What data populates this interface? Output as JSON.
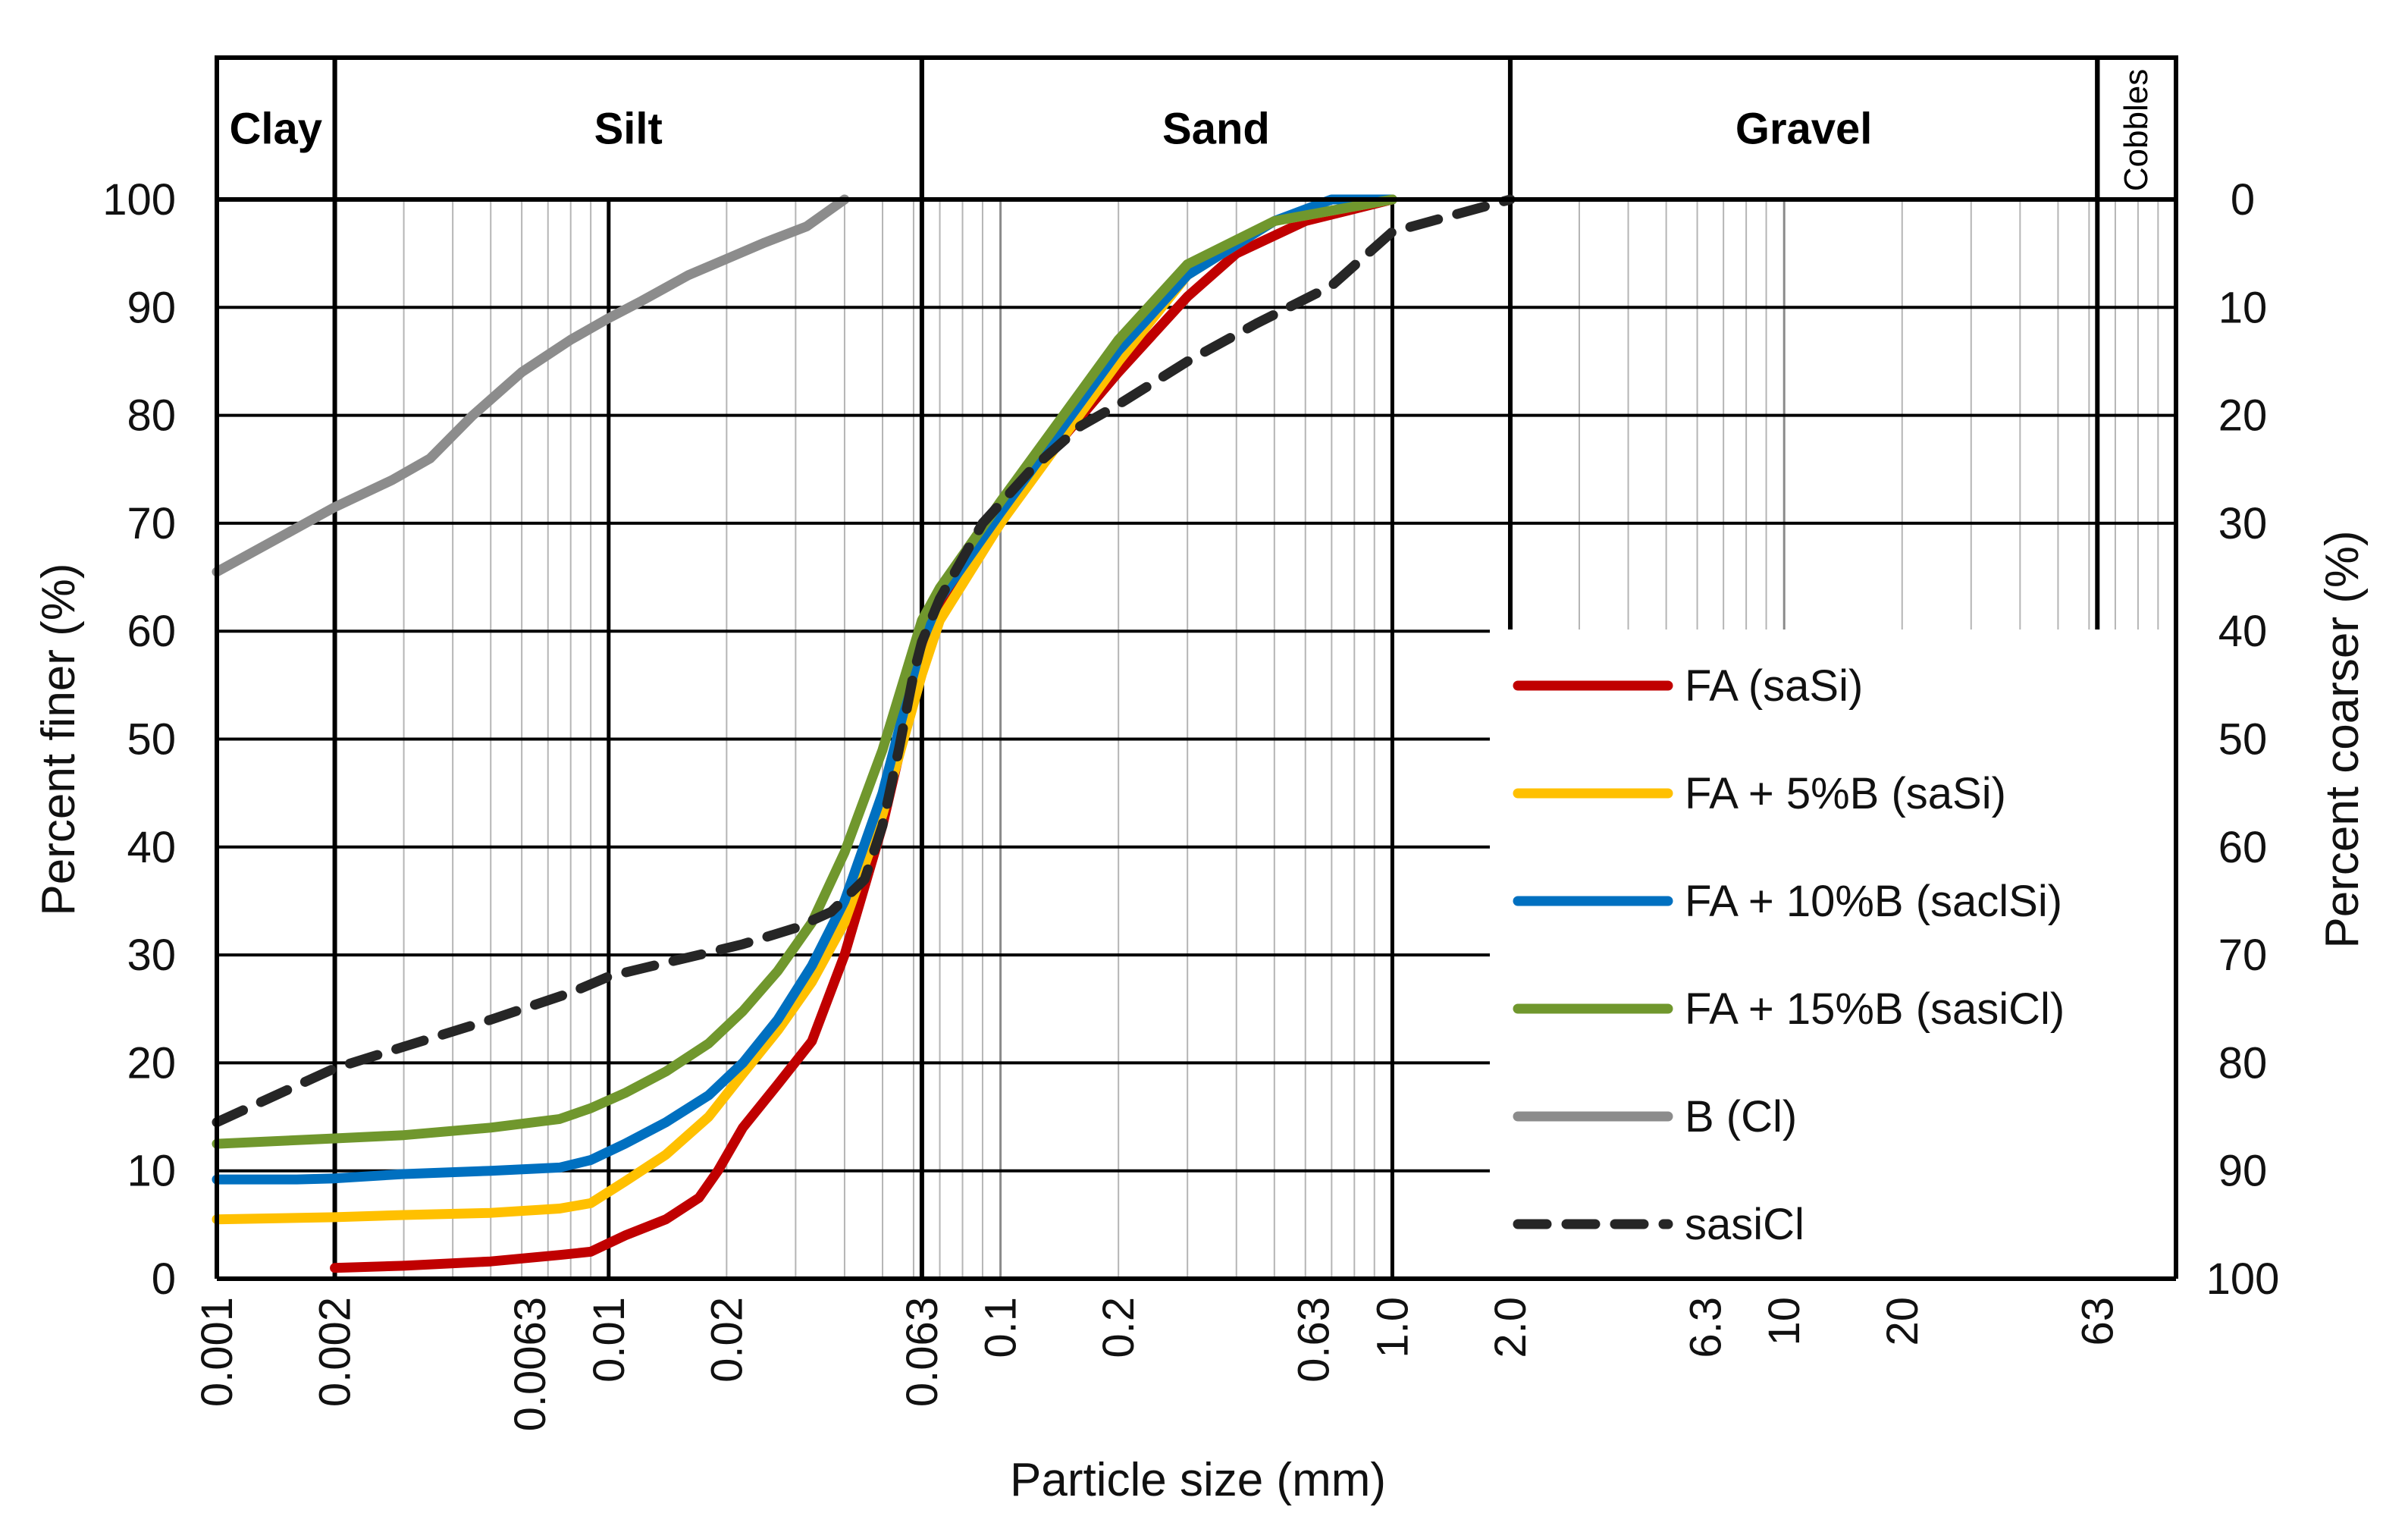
{
  "chart_data": {
    "type": "line",
    "x_scale": "log",
    "xlabel": "Particle size (mm)",
    "ylabel_left": "Percent finer (%)",
    "ylabel_right": "Percent coarser (%)",
    "xlim": [
      0.001,
      100
    ],
    "ylim": [
      0,
      100
    ],
    "x_ticks": [
      {
        "value": 0.001,
        "label": "0.001"
      },
      {
        "value": 0.002,
        "label": "0.002"
      },
      {
        "value": 0.0063,
        "label": "0.0063"
      },
      {
        "value": 0.01,
        "label": "0.01"
      },
      {
        "value": 0.02,
        "label": "0.02"
      },
      {
        "value": 0.063,
        "label": "0.063"
      },
      {
        "value": 0.1,
        "label": "0.1"
      },
      {
        "value": 0.2,
        "label": "0.2"
      },
      {
        "value": 0.63,
        "label": "0.63"
      },
      {
        "value": 1.0,
        "label": "1.0"
      },
      {
        "value": 2.0,
        "label": "2.0"
      },
      {
        "value": 6.3,
        "label": "6.3"
      },
      {
        "value": 10,
        "label": "10"
      },
      {
        "value": 20,
        "label": "20"
      },
      {
        "value": 63,
        "label": "63"
      }
    ],
    "y_ticks_left": [
      "0",
      "10",
      "20",
      "30",
      "40",
      "50",
      "60",
      "70",
      "80",
      "90",
      "100"
    ],
    "y_ticks_right": [
      "100",
      "90",
      "80",
      "70",
      "60",
      "50",
      "40",
      "30",
      "20",
      "10",
      "0"
    ],
    "fractions": [
      {
        "label": "Clay",
        "from": 0.001,
        "to": 0.002
      },
      {
        "label": "Silt",
        "from": 0.002,
        "to": 0.063
      },
      {
        "label": "Sand",
        "from": 0.063,
        "to": 2.0
      },
      {
        "label": "Gravel",
        "from": 2.0,
        "to": 63
      },
      {
        "label": "Cobbles",
        "from": 63,
        "to": 100
      }
    ],
    "series": [
      {
        "name": "FA (saSi)",
        "color": "#c00000",
        "dash": "solid",
        "x": [
          0.002,
          0.003,
          0.005,
          0.0075,
          0.009,
          0.011,
          0.014,
          0.017,
          0.019,
          0.022,
          0.027,
          0.033,
          0.04,
          0.05,
          0.058,
          0.063,
          0.07,
          0.08,
          0.1,
          0.13,
          0.2,
          0.3,
          0.4,
          0.6,
          1.0
        ],
        "y": [
          1,
          1.2,
          1.6,
          2.2,
          2.5,
          4,
          5.5,
          7.5,
          10,
          14,
          18,
          22,
          30,
          42,
          52,
          58,
          62,
          65,
          70,
          76,
          84,
          91,
          95,
          98,
          100
        ]
      },
      {
        "name": "FA + 5%B (saSi)",
        "color": "#ffc000",
        "dash": "solid",
        "x": [
          0.001,
          0.002,
          0.003,
          0.005,
          0.0075,
          0.009,
          0.011,
          0.014,
          0.018,
          0.022,
          0.027,
          0.033,
          0.04,
          0.05,
          0.063,
          0.07,
          0.1,
          0.2,
          0.3,
          0.5,
          1.0
        ],
        "y": [
          5.5,
          5.7,
          5.9,
          6.1,
          6.5,
          7,
          9,
          11.5,
          15,
          19,
          23,
          27.5,
          33,
          43,
          56,
          61,
          70,
          85,
          93,
          98,
          100
        ]
      },
      {
        "name": "FA + 10%B  (saclSi)",
        "color": "#0070c0",
        "dash": "solid",
        "x": [
          0.001,
          0.0016,
          0.002,
          0.003,
          0.005,
          0.0075,
          0.009,
          0.011,
          0.014,
          0.018,
          0.022,
          0.027,
          0.033,
          0.04,
          0.05,
          0.063,
          0.07,
          0.1,
          0.2,
          0.3,
          0.5,
          0.7,
          1.0
        ],
        "y": [
          9.2,
          9.2,
          9.3,
          9.7,
          10,
          10.3,
          11,
          12.5,
          14.5,
          17,
          20,
          24,
          29,
          35,
          45,
          59,
          63,
          71,
          86,
          93,
          98,
          100,
          100
        ]
      },
      {
        "name": "FA + 15%B (sasiCl)",
        "color": "#70972d",
        "dash": "solid",
        "x": [
          0.001,
          0.002,
          0.003,
          0.005,
          0.0075,
          0.009,
          0.011,
          0.014,
          0.018,
          0.022,
          0.027,
          0.033,
          0.04,
          0.05,
          0.063,
          0.07,
          0.1,
          0.2,
          0.3,
          0.5,
          1.0
        ],
        "y": [
          12.5,
          13,
          13.3,
          14,
          14.8,
          15.8,
          17.2,
          19.2,
          21.8,
          24.8,
          28.5,
          33,
          39.5,
          49,
          61,
          64,
          72,
          87,
          94,
          98,
          100
        ]
      },
      {
        "name": "B (Cl)",
        "color": "#8c8c8c",
        "dash": "solid",
        "x": [
          0.001,
          0.0015,
          0.002,
          0.0028,
          0.0035,
          0.0045,
          0.006,
          0.008,
          0.01,
          0.012,
          0.016,
          0.02,
          0.025,
          0.032,
          0.04
        ],
        "y": [
          65.5,
          69,
          71.5,
          74,
          76,
          80,
          84,
          87,
          89,
          90.5,
          93,
          94.5,
          96,
          97.5,
          100
        ]
      },
      {
        "name": "sasiCl",
        "color": "#262626",
        "dash": "dashed",
        "x": [
          0.001,
          0.002,
          0.003,
          0.005,
          0.008,
          0.01,
          0.013,
          0.017,
          0.022,
          0.03,
          0.037,
          0.045,
          0.05,
          0.055,
          0.06,
          0.063,
          0.07,
          0.09,
          0.12,
          0.16,
          0.2,
          0.3,
          0.45,
          0.7,
          1.0,
          2.0
        ],
        "y": [
          14.5,
          19.5,
          21.5,
          24,
          26.5,
          28,
          29,
          30,
          31,
          32.5,
          34,
          37,
          42,
          49,
          56,
          59,
          63,
          70,
          75,
          79,
          81,
          85,
          88.5,
          92,
          97,
          100
        ]
      }
    ]
  }
}
